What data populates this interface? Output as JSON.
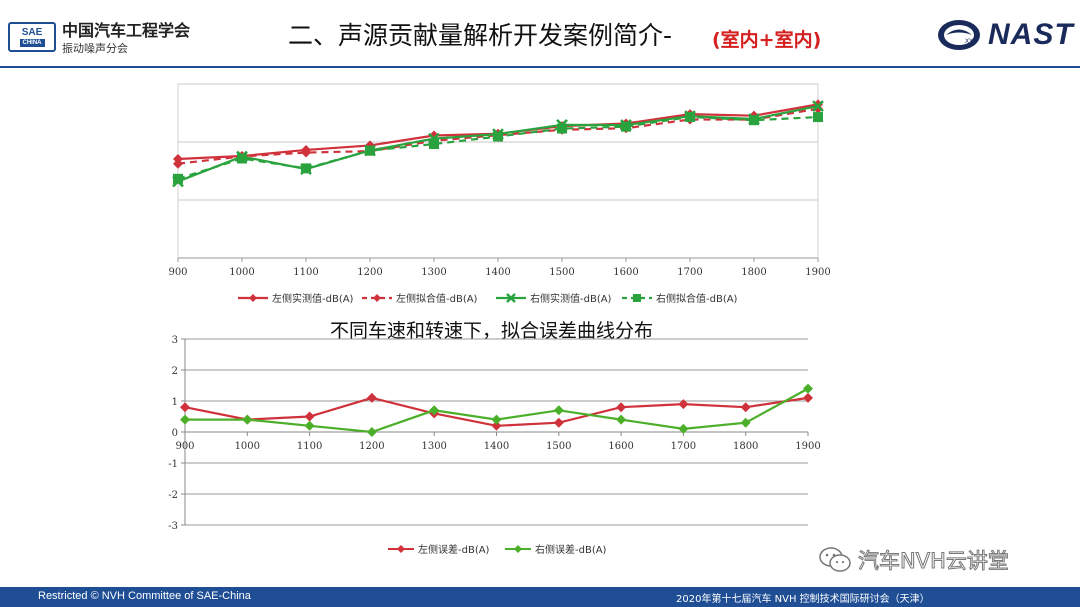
{
  "header": {
    "logo_top": "SAE",
    "logo_bottom": "CHINA",
    "org_name": "中国汽车工程学会",
    "org_sub": "振动噪声分会",
    "title": "二、声源贡献量解析开发案例简介-",
    "title_accent": "(室内+室内)",
    "right_logo_text": "NAST",
    "right_logo_mark": "XY"
  },
  "middle_caption": "不同车速和转速下，拟合误差曲线分布",
  "watermark": {
    "text": "汽车NVH云讲堂",
    "icon": "wechat-icon"
  },
  "footer": {
    "left": "Restricted © NVH Committee of SAE-China",
    "right": "2020年第十七届汽车 NVH 控制技术国际研讨会（天津）"
  },
  "chart_data": [
    {
      "type": "line",
      "x": [
        900,
        1000,
        1100,
        1200,
        1300,
        1400,
        1500,
        1600,
        1700,
        1800,
        1900
      ],
      "ylim": [
        0,
        100
      ],
      "grid": "horizontal",
      "legend": "bottom",
      "series": [
        {
          "name": "左侧实测值-dB(A)",
          "color": "#d0323b",
          "dash": "solid",
          "marker": "diamond",
          "values": [
            56.9,
            58.6,
            62.1,
            64.7,
            70.4,
            71.4,
            75.8,
            77.3,
            82.7,
            81.8,
            88.3
          ]
        },
        {
          "name": "左侧拟合值-dB(A)",
          "color": "#d0323b",
          "dash": "dashed",
          "marker": "diamond",
          "values": [
            54.2,
            58.4,
            60.6,
            61.4,
            67.4,
            70.6,
            73.7,
            74.6,
            79.6,
            79.6,
            85.8
          ]
        },
        {
          "name": "右侧实测值-dB(A)",
          "color": "#2aa33e",
          "dash": "solid",
          "marker": "x",
          "values": [
            44.0,
            58.3,
            51.1,
            61.8,
            68.6,
            71.2,
            76.5,
            76.4,
            81.5,
            79.9,
            87.3
          ]
        },
        {
          "name": "右侧拟合值-dB(A)",
          "color": "#2aa33e",
          "dash": "dashed",
          "marker": "square",
          "values": [
            45.5,
            57.2,
            51.5,
            61.7,
            65.5,
            69.8,
            74.4,
            75.5,
            81.1,
            79.2,
            81.0
          ]
        }
      ]
    },
    {
      "type": "line",
      "x": [
        900,
        1000,
        1100,
        1200,
        1300,
        1400,
        1500,
        1600,
        1700,
        1800,
        1900
      ],
      "yticks": [
        3,
        2,
        1,
        0,
        -1,
        -2,
        -3
      ],
      "ylim": [
        -3,
        3
      ],
      "grid": "horizontal",
      "legend": "bottom",
      "series": [
        {
          "name": "左侧误差-dB(A)",
          "color": "#d0323b",
          "marker": "diamond",
          "values": [
            0.8,
            0.4,
            0.5,
            1.1,
            0.6,
            0.2,
            0.3,
            0.8,
            0.9,
            0.8,
            1.1
          ]
        },
        {
          "name": "右侧误差-dB(A)",
          "color": "#4caf2a",
          "marker": "diamond",
          "values": [
            0.4,
            0.4,
            0.2,
            0.0,
            0.7,
            0.4,
            0.7,
            0.4,
            0.1,
            0.3,
            1.4
          ]
        }
      ]
    }
  ]
}
